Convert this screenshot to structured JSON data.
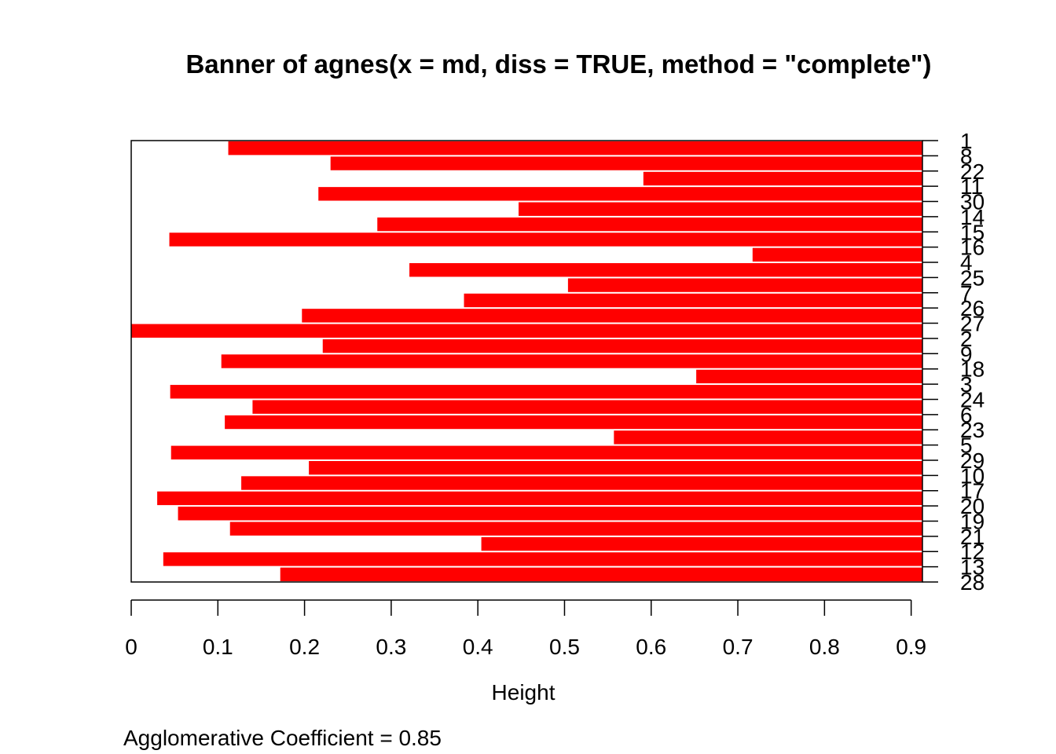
{
  "chart_data": {
    "type": "bar",
    "orientation": "horizontal",
    "title": "Banner of  agnes(x = md, diss = TRUE, method = \"complete\")",
    "xlabel": "Height",
    "xlim": [
      0,
      0.913
    ],
    "x_ticks": [
      "0",
      "0.1",
      "0.2",
      "0.3",
      "0.4",
      "0.5",
      "0.6",
      "0.7",
      "0.8",
      "0.9"
    ],
    "order": [
      "1",
      "8",
      "22",
      "11",
      "30",
      "14",
      "15",
      "16",
      "4",
      "25",
      "7",
      "26",
      "27",
      "2",
      "9",
      "18",
      "3",
      "24",
      "6",
      "23",
      "5",
      "29",
      "10",
      "17",
      "20",
      "19",
      "21",
      "12",
      "13",
      "28"
    ],
    "merge_heights": [
      0.112,
      0.23,
      0.591,
      0.216,
      0.447,
      0.284,
      0.044,
      0.717,
      0.321,
      0.504,
      0.384,
      0.197,
      0.0,
      0.221,
      0.104,
      0.652,
      0.045,
      0.14,
      0.108,
      0.557,
      0.046,
      0.205,
      0.127,
      0.03,
      0.054,
      0.114,
      0.404,
      0.037,
      0.172
    ],
    "bar_color": "#ff0000",
    "footer": "Agglomerative Coefficient =  0.85"
  }
}
